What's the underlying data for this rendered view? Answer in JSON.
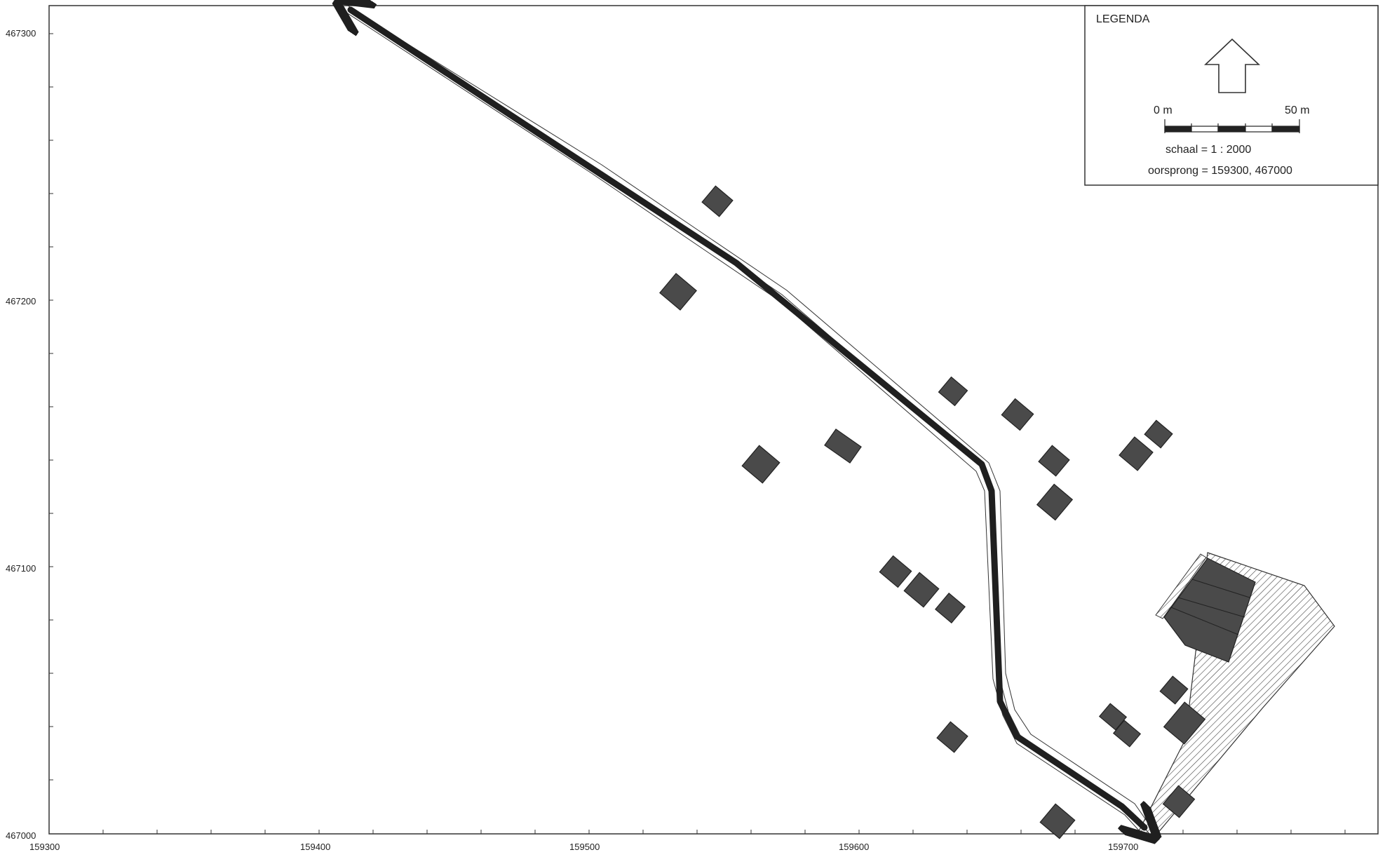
{
  "map": {
    "x_ticks": [
      "159300",
      "159400",
      "159500",
      "159600",
      "159700"
    ],
    "y_ticks": [
      "467000",
      "467100",
      "467200",
      "467300"
    ],
    "colors": {
      "building": "#4a4a4a",
      "route": "#1f1f1f",
      "frame": "#333333"
    }
  },
  "legend": {
    "title": "LEGENDA",
    "north_arrow_icon": "north-arrow-icon",
    "scale_start": "0 m",
    "scale_end": "50 m",
    "scale_text": "schaal = 1 : 2000",
    "origin_text": "oorsprong = 159300, 467000"
  }
}
